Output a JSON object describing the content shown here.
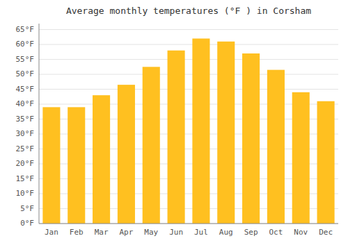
{
  "chart_data": {
    "type": "bar",
    "title": "Average monthly temperatures (°F ) in Corsham",
    "categories": [
      "Jan",
      "Feb",
      "Mar",
      "Apr",
      "May",
      "Jun",
      "Jul",
      "Aug",
      "Sep",
      "Oct",
      "Nov",
      "Dec"
    ],
    "values": [
      39.0,
      39.0,
      43.0,
      46.5,
      52.5,
      58.0,
      62.0,
      61.0,
      57.0,
      51.5,
      44.0,
      41.0
    ],
    "color": "#FFC020",
    "ylim": [
      0,
      67
    ],
    "yticks": [
      {
        "value": 0,
        "label": "0°F"
      },
      {
        "value": 5,
        "label": "5°F"
      },
      {
        "value": 10,
        "label": "10°F"
      },
      {
        "value": 15,
        "label": "15°F"
      },
      {
        "value": 20,
        "label": "20°F"
      },
      {
        "value": 25,
        "label": "25°F"
      },
      {
        "value": 30,
        "label": "30°F"
      },
      {
        "value": 35,
        "label": "35°F"
      },
      {
        "value": 40,
        "label": "40°F"
      },
      {
        "value": 45,
        "label": "45°F"
      },
      {
        "value": 50,
        "label": "50°F"
      },
      {
        "value": 55,
        "label": "55°F"
      },
      {
        "value": 60,
        "label": "60°F"
      },
      {
        "value": 65,
        "label": "65°F"
      }
    ],
    "grid": true
  }
}
